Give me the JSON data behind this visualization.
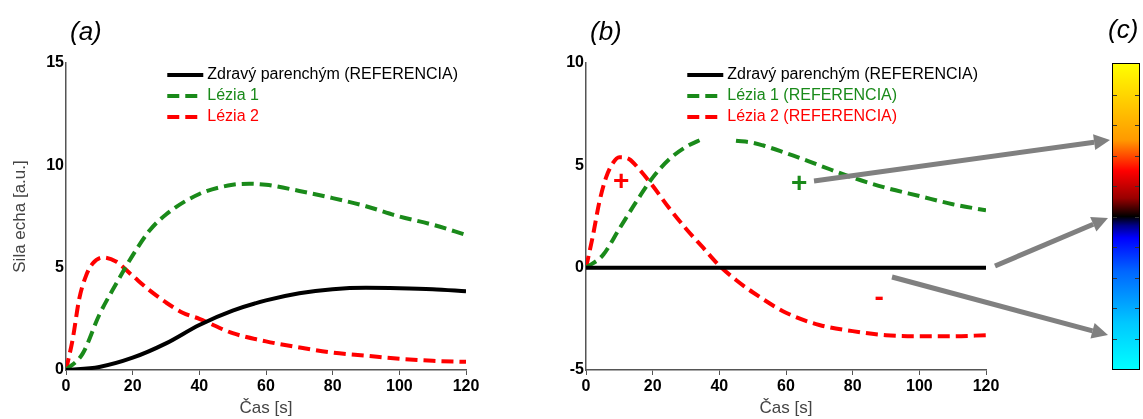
{
  "chart_data": [
    {
      "type": "line",
      "title": "(a)",
      "xlabel": "Čas [s]",
      "ylabel": "Sila echa [a.u.]",
      "xlim": [
        0,
        120
      ],
      "xticks": [
        0,
        20,
        40,
        60,
        80,
        100,
        120
      ],
      "ylim": [
        0,
        15
      ],
      "yticks": [
        0,
        5,
        10,
        15
      ],
      "grid": false,
      "legend": "top right",
      "series": [
        {
          "name": "Zdravý parenchým (REFERENCIA)",
          "color": "#000000",
          "line_style": "solid",
          "x": [
            0,
            10,
            20,
            30,
            40,
            50,
            60,
            70,
            80,
            90,
            100,
            110,
            120
          ],
          "values": [
            0,
            0.15,
            0.6,
            1.3,
            2.2,
            2.9,
            3.4,
            3.75,
            3.95,
            4.02,
            4.0,
            3.95,
            3.85
          ]
        },
        {
          "name": "Lézia 1",
          "color": "#1a8a1a",
          "line_style": "dashed",
          "x": [
            0,
            5,
            10,
            15,
            20,
            25,
            30,
            40,
            50,
            55,
            60,
            70,
            80,
            90,
            100,
            110,
            120
          ],
          "values": [
            0,
            0.8,
            2.7,
            4.2,
            5.6,
            6.8,
            7.6,
            8.6,
            9.05,
            9.1,
            9.05,
            8.75,
            8.4,
            8.0,
            7.5,
            7.1,
            6.6
          ]
        },
        {
          "name": "Lézia 2",
          "color": "#ff0000",
          "line_style": "dashed",
          "x": [
            0,
            2,
            4,
            6,
            8,
            11,
            15,
            20,
            25,
            30,
            35,
            40,
            50,
            60,
            70,
            80,
            90,
            100,
            110,
            120
          ],
          "values": [
            0,
            1.5,
            3.5,
            4.6,
            5.2,
            5.5,
            5.3,
            4.6,
            3.9,
            3.3,
            2.8,
            2.5,
            1.8,
            1.4,
            1.1,
            0.85,
            0.7,
            0.55,
            0.45,
            0.4
          ]
        }
      ]
    },
    {
      "type": "line",
      "title": "(b)",
      "xlabel": "Čas [s]",
      "xlim": [
        0,
        120
      ],
      "xticks": [
        0,
        20,
        40,
        60,
        80,
        100,
        120
      ],
      "ylim": [
        -5,
        10
      ],
      "yticks": [
        -5,
        0,
        5,
        10
      ],
      "grid": false,
      "legend": "top right",
      "annotations": [
        "+",
        "+",
        "-"
      ],
      "series": [
        {
          "name": "Zdravý parenchým (REFERENCIA)",
          "color": "#000000",
          "line_style": "solid",
          "x": [
            0,
            120
          ],
          "values": [
            0,
            0
          ]
        },
        {
          "name": "Lézia 1 (REFERENCIA)",
          "color": "#1a8a1a",
          "line_style": "dashed",
          "x": [
            0,
            5,
            10,
            15,
            20,
            25,
            30,
            35,
            40,
            45,
            50,
            60,
            70,
            80,
            90,
            100,
            110,
            120
          ],
          "values": [
            0,
            0.6,
            1.9,
            3.2,
            4.4,
            5.3,
            5.9,
            6.3,
            null,
            6.2,
            6.1,
            5.6,
            5.0,
            4.4,
            3.9,
            3.5,
            3.1,
            2.8
          ]
        },
        {
          "name": "Lézia 2 (REFERENCIA)",
          "color": "#ff0000",
          "line_style": "dashed",
          "x": [
            0,
            2,
            4,
            6,
            8,
            10,
            13,
            16,
            20,
            25,
            30,
            35,
            40,
            45,
            50,
            60,
            70,
            80,
            90,
            100,
            110,
            120
          ],
          "values": [
            0,
            1.5,
            3.2,
            4.4,
            5.1,
            5.4,
            5.3,
            4.8,
            4.0,
            2.9,
            1.9,
            1.0,
            0.1,
            -0.6,
            -1.2,
            -2.2,
            -2.8,
            -3.1,
            -3.3,
            -3.35,
            -3.35,
            -3.3
          ]
        }
      ]
    },
    {
      "type": "other",
      "title": "(c)"
    }
  ]
}
